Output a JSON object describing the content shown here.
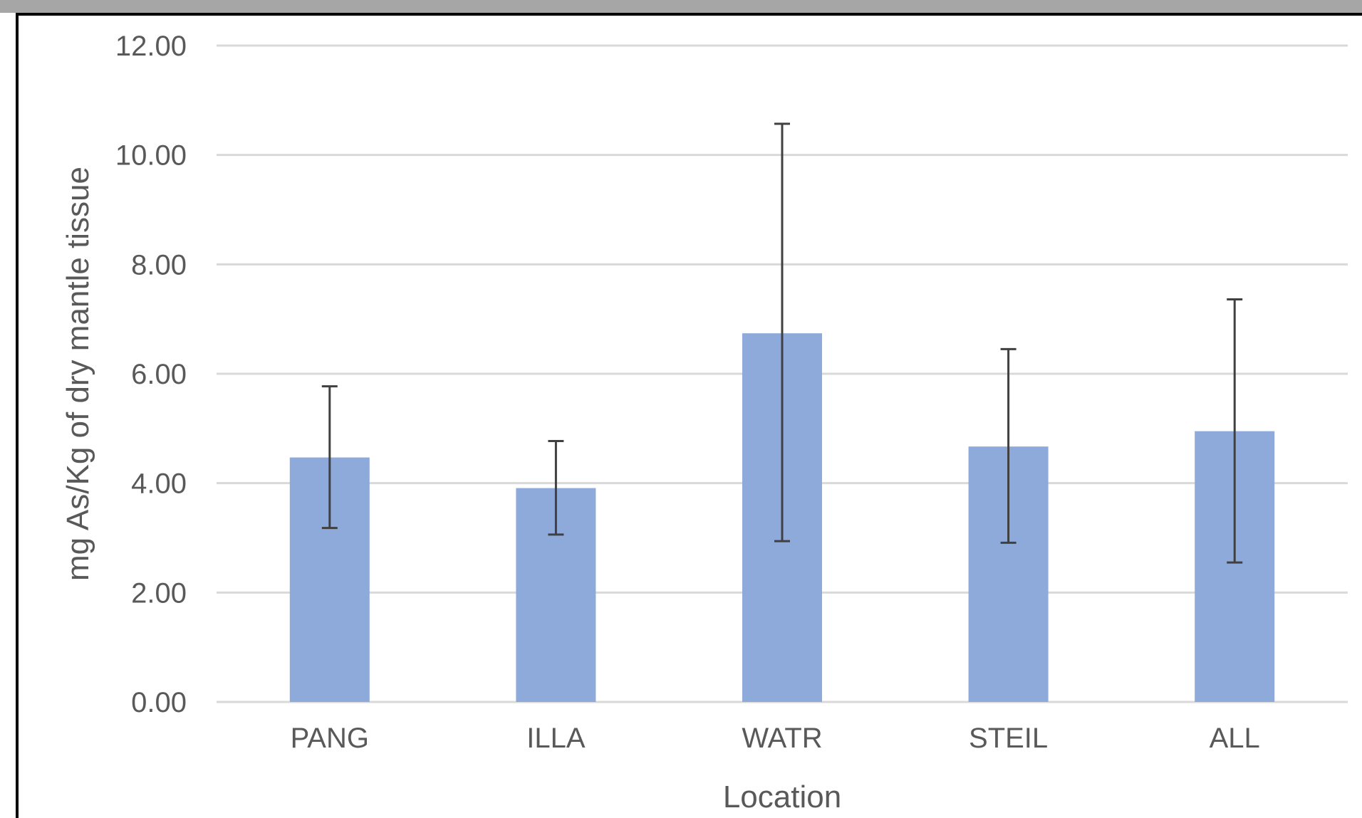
{
  "chart_data": {
    "type": "bar",
    "title": "",
    "xlabel": "Location",
    "ylabel": "mg As/Kg of dry mantle tissue",
    "categories": [
      "PANG",
      "ILLA",
      "WATR",
      "STEIL",
      "ALL"
    ],
    "values": [
      4.47,
      3.91,
      6.74,
      4.67,
      4.95
    ],
    "error_low": [
      3.18,
      3.06,
      2.94,
      2.91,
      2.55
    ],
    "error_high": [
      5.77,
      4.77,
      10.57,
      6.45,
      7.36
    ],
    "ylim": [
      0,
      12
    ],
    "yticks": [
      "0.00",
      "2.00",
      "4.00",
      "6.00",
      "8.00",
      "10.00",
      "12.00"
    ],
    "grid": true,
    "colors": {
      "bar": "#8eaadb",
      "error_bar": "#404040",
      "grid": "#d9d9d9",
      "text": "#595959"
    }
  }
}
